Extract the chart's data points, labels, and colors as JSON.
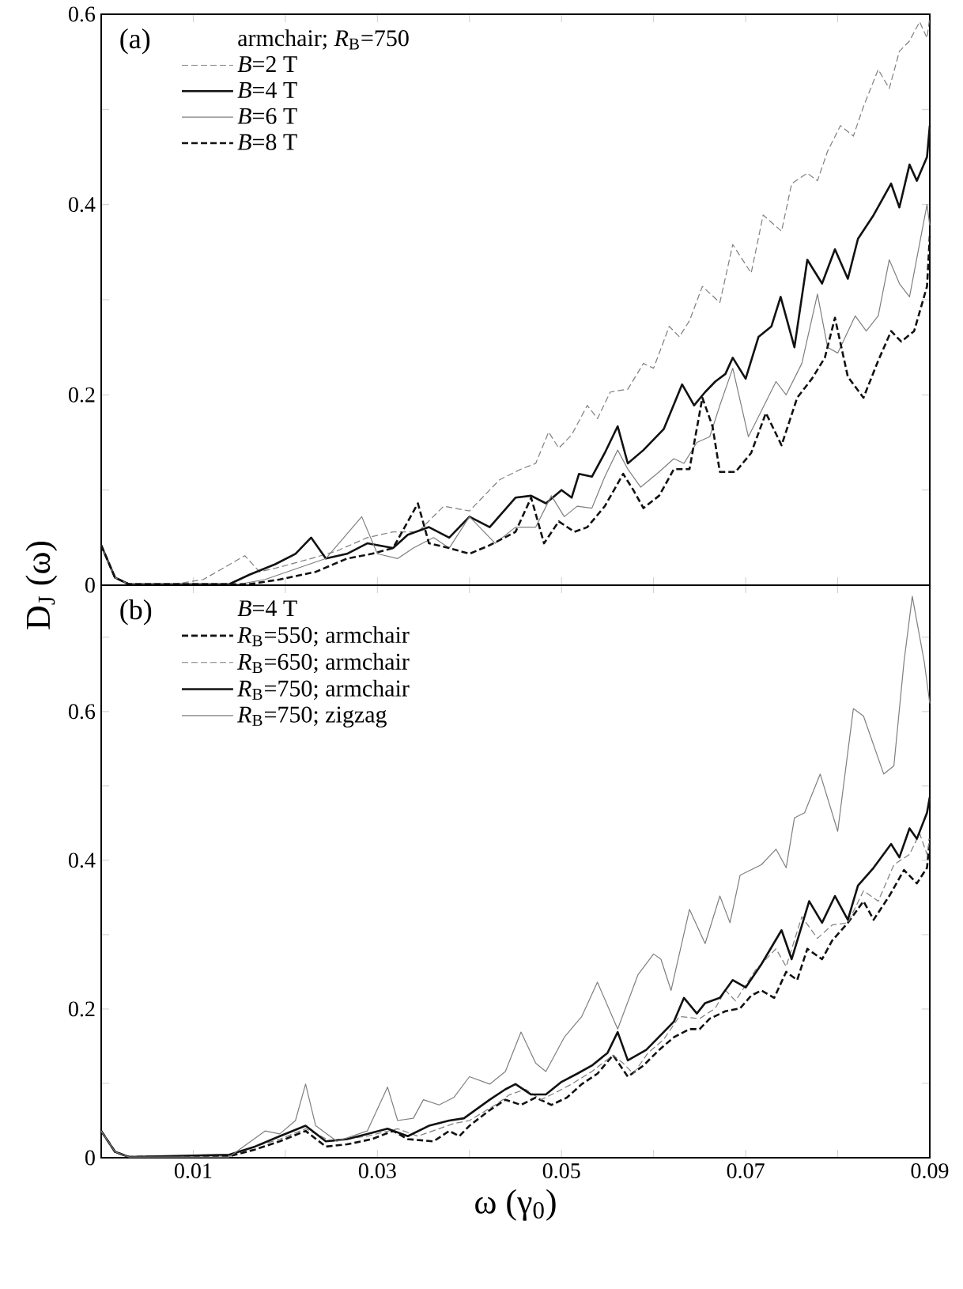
{
  "chart_data": [
    {
      "type": "line",
      "ylabel": "D$_{J}$ (ω)",
      "legend_title": "armchair; *R*$_{B}$=750",
      "annotations": [
        "(a)"
      ],
      "legend": "top left",
      "marker": "none",
      "tick_labels": "y",
      "xlim": [
        0,
        0.09
      ],
      "ylim": [
        0,
        0.6
      ],
      "xticks": [
        {
          "value": 0.01,
          "label": null
        },
        {
          "value": 0.02,
          "label": null
        },
        {
          "value": 0.03,
          "label": null
        },
        {
          "value": 0.04,
          "label": null
        },
        {
          "value": 0.05,
          "label": null
        },
        {
          "value": 0.06,
          "label": null
        },
        {
          "value": 0.07,
          "label": null
        },
        {
          "value": 0.08,
          "label": null
        },
        {
          "value": 0.09,
          "label": null
        }
      ],
      "yticks": [
        0,
        {
          "value": 0.1,
          "label": null
        },
        0.2,
        {
          "value": 0.3,
          "label": null
        },
        0.4,
        {
          "value": 0.5,
          "label": null
        },
        0.6
      ],
      "series": [
        {
          "name": "*B*=2 T",
          "color": "#7f7f7f",
          "line_style": "dashed",
          "x": [
            0,
            0.0015,
            0.003,
            0.008,
            0.0111,
            0.0156,
            0.0172,
            0.0194,
            0.0228,
            0.0256,
            0.0289,
            0.0317,
            0.0344,
            0.0372,
            0.04,
            0.0433,
            0.0456,
            0.0472,
            0.0486,
            0.0497,
            0.0511,
            0.0528,
            0.0539,
            0.0553,
            0.0572,
            0.0589,
            0.06,
            0.0617,
            0.0628,
            0.0639,
            0.0653,
            0.0672,
            0.0686,
            0.0706,
            0.0719,
            0.0739,
            0.075,
            0.0767,
            0.0778,
            0.0789,
            0.0803,
            0.0817,
            0.0828,
            0.0844,
            0.0856,
            0.0867,
            0.0878,
            0.0889,
            0.0897,
            0.09
          ],
          "values": [
            0.042,
            0.008,
            0.001,
            0.001,
            0.006,
            0.031,
            0.014,
            0.019,
            0.028,
            0.036,
            0.05,
            0.056,
            0.056,
            0.083,
            0.078,
            0.111,
            0.122,
            0.128,
            0.161,
            0.144,
            0.158,
            0.189,
            0.175,
            0.203,
            0.206,
            0.233,
            0.228,
            0.272,
            0.261,
            0.278,
            0.314,
            0.297,
            0.358,
            0.328,
            0.389,
            0.372,
            0.422,
            0.433,
            0.425,
            0.456,
            0.483,
            0.472,
            0.503,
            0.542,
            0.522,
            0.561,
            0.572,
            0.592,
            0.575,
            0.597
          ]
        },
        {
          "name": "*B*=4 T",
          "color": "#111111",
          "line_style": "solid",
          "x": [
            0,
            0.0015,
            0.003,
            0.0139,
            0.0161,
            0.0189,
            0.0211,
            0.0228,
            0.0244,
            0.0267,
            0.0289,
            0.0317,
            0.0333,
            0.0356,
            0.0378,
            0.04,
            0.0422,
            0.045,
            0.0467,
            0.0483,
            0.05,
            0.0511,
            0.0519,
            0.0533,
            0.0547,
            0.0561,
            0.0572,
            0.0589,
            0.0611,
            0.0631,
            0.0644,
            0.0656,
            0.0667,
            0.0678,
            0.0686,
            0.07,
            0.0714,
            0.0728,
            0.0738,
            0.0753,
            0.0767,
            0.0783,
            0.0797,
            0.0811,
            0.0822,
            0.0839,
            0.0858,
            0.0867,
            0.0878,
            0.0886,
            0.0897,
            0.09
          ],
          "values": [
            0.042,
            0.008,
            0.001,
            0.001,
            0.011,
            0.022,
            0.033,
            0.05,
            0.028,
            0.033,
            0.044,
            0.039,
            0.053,
            0.061,
            0.05,
            0.072,
            0.061,
            0.092,
            0.094,
            0.086,
            0.1,
            0.092,
            0.117,
            0.114,
            0.139,
            0.167,
            0.128,
            0.142,
            0.164,
            0.211,
            0.189,
            0.203,
            0.214,
            0.222,
            0.239,
            0.217,
            0.261,
            0.272,
            0.303,
            0.25,
            0.342,
            0.317,
            0.353,
            0.322,
            0.364,
            0.389,
            0.422,
            0.397,
            0.442,
            0.425,
            0.45,
            0.483
          ]
        },
        {
          "name": "*B*=6 T",
          "color": "#7f7f7f",
          "line_style": "solid",
          "x": [
            0,
            0.0015,
            0.003,
            0.015,
            0.0178,
            0.0211,
            0.0244,
            0.0283,
            0.03,
            0.0322,
            0.0339,
            0.0361,
            0.0378,
            0.04,
            0.0411,
            0.0428,
            0.045,
            0.0472,
            0.0489,
            0.0503,
            0.0517,
            0.0533,
            0.0547,
            0.0561,
            0.0572,
            0.0586,
            0.0606,
            0.0622,
            0.0633,
            0.0647,
            0.0661,
            0.0672,
            0.0686,
            0.0703,
            0.0717,
            0.0733,
            0.0744,
            0.0761,
            0.0778,
            0.0789,
            0.08,
            0.0819,
            0.0831,
            0.0844,
            0.0856,
            0.0867,
            0.0878,
            0.0886,
            0.0897,
            0.09
          ],
          "values": [
            0.042,
            0.008,
            0.001,
            0.001,
            0.006,
            0.017,
            0.028,
            0.072,
            0.033,
            0.028,
            0.039,
            0.05,
            0.039,
            0.072,
            0.061,
            0.044,
            0.061,
            0.061,
            0.094,
            0.072,
            0.083,
            0.081,
            0.114,
            0.142,
            0.122,
            0.103,
            0.119,
            0.133,
            0.128,
            0.15,
            0.156,
            0.189,
            0.228,
            0.156,
            0.183,
            0.214,
            0.2,
            0.233,
            0.306,
            0.25,
            0.244,
            0.283,
            0.267,
            0.283,
            0.342,
            0.317,
            0.303,
            0.344,
            0.4,
            0.378
          ]
        },
        {
          "name": "*B*=8 T",
          "color": "#111111",
          "line_style": "dashed",
          "x": [
            0,
            0.0015,
            0.003,
            0.016,
            0.0194,
            0.0233,
            0.0267,
            0.0294,
            0.0317,
            0.0344,
            0.0356,
            0.0378,
            0.04,
            0.0422,
            0.045,
            0.0467,
            0.0481,
            0.0497,
            0.0514,
            0.0528,
            0.0547,
            0.0567,
            0.0578,
            0.0589,
            0.0606,
            0.0622,
            0.0639,
            0.0653,
            0.0664,
            0.0672,
            0.0689,
            0.0706,
            0.0722,
            0.0739,
            0.0756,
            0.0772,
            0.0786,
            0.0797,
            0.0811,
            0.0828,
            0.0844,
            0.0858,
            0.0869,
            0.0883,
            0.0897,
            0.09
          ],
          "values": [
            0.042,
            0.008,
            0.001,
            0.001,
            0.006,
            0.014,
            0.028,
            0.033,
            0.039,
            0.086,
            0.044,
            0.039,
            0.033,
            0.042,
            0.056,
            0.092,
            0.044,
            0.067,
            0.056,
            0.061,
            0.083,
            0.117,
            0.1,
            0.081,
            0.094,
            0.122,
            0.122,
            0.197,
            0.167,
            0.119,
            0.119,
            0.139,
            0.181,
            0.147,
            0.197,
            0.217,
            0.239,
            0.281,
            0.219,
            0.197,
            0.236,
            0.267,
            0.256,
            0.267,
            0.314,
            0.367
          ]
        }
      ]
    },
    {
      "type": "line",
      "xlabel": "ω (γ$_{0}$)",
      "legend_title": "*B*=4 T",
      "annotations": [
        "(b)"
      ],
      "legend": "top left",
      "marker": "none",
      "xlim": [
        0,
        0.09
      ],
      "ylim": [
        0,
        0.77
      ],
      "xticks": [
        {
          "value": 0.01,
          "label": "0.01"
        },
        {
          "value": 0.02,
          "label": null
        },
        {
          "value": 0.03,
          "label": "0.03"
        },
        {
          "value": 0.04,
          "label": null
        },
        {
          "value": 0.05,
          "label": "0.05"
        },
        {
          "value": 0.06,
          "label": null
        },
        {
          "value": 0.07,
          "label": "0.07"
        },
        {
          "value": 0.08,
          "label": null
        },
        {
          "value": 0.09,
          "label": "0.09"
        }
      ],
      "yticks": [
        0,
        {
          "value": 0.1,
          "label": null
        },
        0.2,
        {
          "value": 0.3,
          "label": null
        },
        0.4,
        {
          "value": 0.5,
          "label": null
        },
        0.6,
        {
          "value": 0.7,
          "label": null
        }
      ],
      "series": [
        {
          "name": "*R*$_{B}$=550; armchair",
          "color": "#111111",
          "line_style": "dashed",
          "x": [
            0,
            0.0015,
            0.003,
            0.0139,
            0.0167,
            0.0194,
            0.0222,
            0.0244,
            0.0267,
            0.0294,
            0.0317,
            0.0333,
            0.0361,
            0.0378,
            0.0389,
            0.04,
            0.0422,
            0.0439,
            0.0456,
            0.0472,
            0.0489,
            0.0506,
            0.0522,
            0.0539,
            0.0556,
            0.0572,
            0.0589,
            0.0606,
            0.0622,
            0.0639,
            0.065,
            0.0661,
            0.0678,
            0.0694,
            0.0706,
            0.0717,
            0.0731,
            0.0744,
            0.0756,
            0.0767,
            0.0783,
            0.0794,
            0.0811,
            0.0828,
            0.0839,
            0.0856,
            0.0872,
            0.0886,
            0.0897,
            0.09
          ],
          "values": [
            0.036,
            0.008,
            0.001,
            0.002,
            0.011,
            0.022,
            0.036,
            0.015,
            0.018,
            0.025,
            0.036,
            0.025,
            0.022,
            0.036,
            0.029,
            0.043,
            0.064,
            0.078,
            0.071,
            0.081,
            0.071,
            0.081,
            0.099,
            0.113,
            0.138,
            0.109,
            0.124,
            0.145,
            0.162,
            0.173,
            0.173,
            0.187,
            0.197,
            0.201,
            0.218,
            0.225,
            0.215,
            0.25,
            0.239,
            0.281,
            0.267,
            0.292,
            0.316,
            0.345,
            0.32,
            0.352,
            0.387,
            0.369,
            0.39,
            0.429
          ]
        },
        {
          "name": "*R*$_{B}$=650; armchair",
          "color": "#7f7f7f",
          "line_style": "dashed",
          "x": [
            0,
            0.0015,
            0.003,
            0.0139,
            0.0167,
            0.0194,
            0.0222,
            0.025,
            0.0289,
            0.0322,
            0.0344,
            0.0367,
            0.0383,
            0.04,
            0.0428,
            0.0444,
            0.0461,
            0.0478,
            0.0494,
            0.0511,
            0.0533,
            0.0556,
            0.0567,
            0.0578,
            0.0594,
            0.0611,
            0.0628,
            0.065,
            0.0667,
            0.0678,
            0.0689,
            0.0711,
            0.0733,
            0.0744,
            0.0761,
            0.0778,
            0.0794,
            0.0811,
            0.0828,
            0.0844,
            0.0861,
            0.0878,
            0.0889,
            0.0897,
            0.09
          ],
          "values": [
            0.036,
            0.008,
            0.001,
            0.004,
            0.015,
            0.025,
            0.039,
            0.022,
            0.029,
            0.039,
            0.029,
            0.039,
            0.046,
            0.05,
            0.071,
            0.085,
            0.092,
            0.078,
            0.088,
            0.099,
            0.116,
            0.138,
            0.127,
            0.113,
            0.141,
            0.159,
            0.19,
            0.187,
            0.201,
            0.225,
            0.211,
            0.253,
            0.281,
            0.257,
            0.324,
            0.295,
            0.313,
            0.316,
            0.359,
            0.345,
            0.394,
            0.408,
            0.436,
            0.408,
            0.429
          ]
        },
        {
          "name": "*R*$_{B}$=750; armchair",
          "color": "#111111",
          "line_style": "solid",
          "x": [
            0,
            0.0015,
            0.003,
            0.0139,
            0.0167,
            0.0194,
            0.0222,
            0.0244,
            0.0267,
            0.0289,
            0.0311,
            0.0333,
            0.0356,
            0.0378,
            0.0394,
            0.0422,
            0.0439,
            0.045,
            0.0467,
            0.0483,
            0.05,
            0.0517,
            0.0533,
            0.055,
            0.0561,
            0.0572,
            0.0592,
            0.0611,
            0.0622,
            0.0633,
            0.0647,
            0.0656,
            0.0672,
            0.0686,
            0.07,
            0.0717,
            0.0739,
            0.075,
            0.0769,
            0.0783,
            0.0797,
            0.0811,
            0.0822,
            0.0839,
            0.0858,
            0.0867,
            0.0878,
            0.0886,
            0.0897,
            0.09
          ],
          "values": [
            0.036,
            0.008,
            0.001,
            0.004,
            0.015,
            0.029,
            0.043,
            0.022,
            0.025,
            0.032,
            0.039,
            0.029,
            0.043,
            0.05,
            0.053,
            0.078,
            0.092,
            0.099,
            0.085,
            0.085,
            0.102,
            0.113,
            0.124,
            0.141,
            0.169,
            0.131,
            0.145,
            0.169,
            0.183,
            0.215,
            0.194,
            0.208,
            0.215,
            0.239,
            0.229,
            0.26,
            0.306,
            0.267,
            0.345,
            0.316,
            0.352,
            0.32,
            0.366,
            0.39,
            0.422,
            0.404,
            0.443,
            0.429,
            0.464,
            0.485
          ]
        },
        {
          "name": "*R*$_{B}$=750; zigzag",
          "color": "#7f7f7f",
          "line_style": "solid",
          "x": [
            0,
            0.0015,
            0.003,
            0.0139,
            0.015,
            0.0178,
            0.0194,
            0.0211,
            0.0222,
            0.0233,
            0.0256,
            0.0289,
            0.0311,
            0.0322,
            0.0339,
            0.035,
            0.0367,
            0.0383,
            0.04,
            0.0422,
            0.0439,
            0.0456,
            0.0472,
            0.0483,
            0.0503,
            0.0522,
            0.0539,
            0.0561,
            0.0583,
            0.06,
            0.0608,
            0.0619,
            0.0639,
            0.0656,
            0.0672,
            0.0683,
            0.0694,
            0.0717,
            0.0733,
            0.0744,
            0.0753,
            0.0764,
            0.0781,
            0.08,
            0.0817,
            0.0828,
            0.085,
            0.0861,
            0.0872,
            0.0881,
            0.0894,
            0.09
          ],
          "values": [
            0.036,
            0.008,
            0.001,
            0.001,
            0.011,
            0.036,
            0.032,
            0.05,
            0.099,
            0.043,
            0.022,
            0.036,
            0.095,
            0.05,
            0.053,
            0.078,
            0.071,
            0.081,
            0.109,
            0.099,
            0.116,
            0.169,
            0.127,
            0.116,
            0.162,
            0.19,
            0.236,
            0.173,
            0.246,
            0.274,
            0.267,
            0.225,
            0.334,
            0.288,
            0.352,
            0.316,
            0.38,
            0.394,
            0.415,
            0.39,
            0.457,
            0.464,
            0.516,
            0.439,
            0.604,
            0.594,
            0.516,
            0.527,
            0.667,
            0.755,
            0.667,
            0.611
          ]
        }
      ]
    }
  ]
}
